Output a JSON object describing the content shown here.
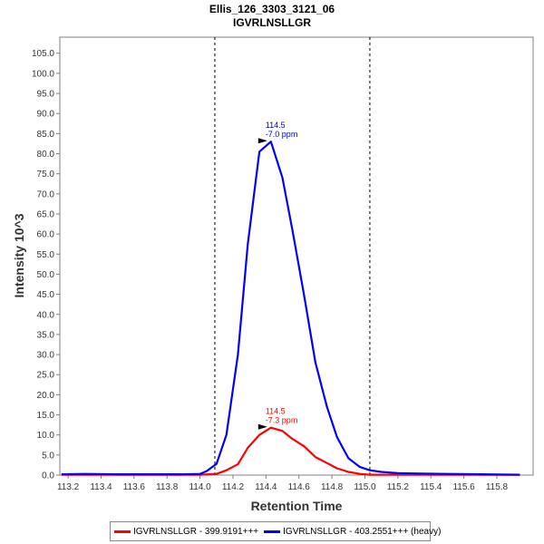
{
  "chart_data": {
    "type": "line",
    "title": "Ellis_126_3303_3121_06",
    "subtitle": "IGVRLNSLLGR",
    "xlabel": "Retention Time",
    "ylabel": "Intensity 10^3",
    "xlim": [
      113.15,
      116.02
    ],
    "ylim": [
      0,
      109
    ],
    "x_ticks": [
      "113.2",
      "113.4",
      "113.6",
      "113.8",
      "114.0",
      "114.2",
      "114.4",
      "114.6",
      "114.8",
      "115.0",
      "115.2",
      "115.4",
      "115.6",
      "115.8"
    ],
    "y_ticks": [
      "0.0",
      "5.0",
      "10.0",
      "15.0",
      "20.0",
      "25.0",
      "30.0",
      "35.0",
      "40.0",
      "45.0",
      "50.0",
      "55.0",
      "60.0",
      "65.0",
      "70.0",
      "75.0",
      "80.0",
      "85.0",
      "90.0",
      "95.0",
      "100.0",
      "105.0"
    ],
    "vlines": [
      114.09,
      115.03
    ],
    "grid": false,
    "legend_position": "bottom",
    "series": [
      {
        "name": "IGVRLNSLLGR - 399.9191+++",
        "color": "#ff0000",
        "x": [
          113.16,
          113.3,
          113.5,
          113.7,
          113.9,
          114.0,
          114.1,
          114.16,
          114.23,
          114.29,
          114.36,
          114.43,
          114.5,
          114.56,
          114.63,
          114.7,
          114.77,
          114.83,
          114.9,
          114.97,
          115.03,
          115.1,
          115.3,
          115.5,
          115.7,
          115.94
        ],
        "y": [
          0.1,
          0.1,
          0.1,
          0.1,
          0.1,
          0.1,
          0.3,
          1.2,
          2.7,
          6.8,
          10.0,
          11.8,
          11.0,
          9.0,
          7.2,
          4.5,
          3.0,
          1.7,
          0.8,
          0.3,
          0.1,
          0.1,
          0.1,
          0.1,
          0.1,
          0.1
        ]
      },
      {
        "name": "IGVRLNSLLGR - 403.2551+++ (heavy)",
        "color": "#0000ff",
        "x": [
          113.16,
          113.3,
          113.5,
          113.7,
          113.9,
          114.0,
          114.04,
          114.1,
          114.16,
          114.23,
          114.29,
          114.36,
          114.43,
          114.5,
          114.56,
          114.63,
          114.7,
          114.77,
          114.83,
          114.9,
          114.97,
          115.03,
          115.1,
          115.2,
          115.3,
          115.5,
          115.7,
          115.94
        ],
        "y": [
          0.2,
          0.3,
          0.2,
          0.2,
          0.2,
          0.3,
          1.0,
          2.8,
          10.0,
          30.0,
          57.5,
          80.5,
          83.0,
          74.0,
          61.0,
          45.0,
          28.0,
          17.0,
          9.5,
          4.2,
          2.0,
          1.2,
          0.8,
          0.5,
          0.4,
          0.3,
          0.2,
          0.1
        ]
      }
    ],
    "annotations": [
      {
        "x": 114.43,
        "y": 83.0,
        "lines": [
          "114.5",
          "-7.0 ppm"
        ],
        "color": "#0000cc"
      },
      {
        "x": 114.43,
        "y": 11.8,
        "lines": [
          "114.5",
          "-7.3 ppm"
        ],
        "color": "#ff0000"
      }
    ]
  }
}
